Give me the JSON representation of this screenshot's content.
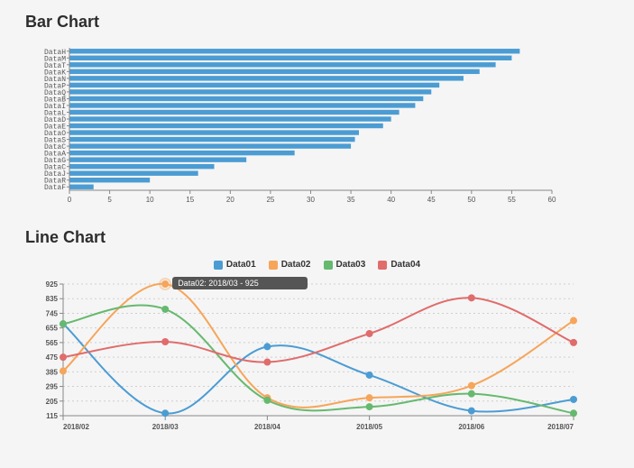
{
  "bar_chart": {
    "title": "Bar Chart",
    "type": "bar-horizontal",
    "bar_color": "#4b9cd3",
    "axis_color": "#888888",
    "tick_color": "#888888",
    "text_color": "#555555",
    "label_font": "monospace",
    "label_fontsize": 8,
    "x_min": 0,
    "x_max": 60,
    "x_tick_step": 5,
    "bars": [
      {
        "label": "DataH",
        "value": 56
      },
      {
        "label": "DataM",
        "value": 55
      },
      {
        "label": "DataT",
        "value": 53
      },
      {
        "label": "DataK",
        "value": 51
      },
      {
        "label": "DataN",
        "value": 49
      },
      {
        "label": "DataP",
        "value": 46
      },
      {
        "label": "DataQ",
        "value": 45
      },
      {
        "label": "DataB",
        "value": 44
      },
      {
        "label": "DataI",
        "value": 43
      },
      {
        "label": "DataL",
        "value": 41
      },
      {
        "label": "DataD",
        "value": 40
      },
      {
        "label": "DataE",
        "value": 39
      },
      {
        "label": "DataO",
        "value": 36
      },
      {
        "label": "DataS",
        "value": 35.5
      },
      {
        "label": "DataC",
        "value": 35
      },
      {
        "label": "DataA",
        "value": 28
      },
      {
        "label": "DataG",
        "value": 22
      },
      {
        "label": "DataC",
        "value": 18
      },
      {
        "label": "DataJ",
        "value": 16
      },
      {
        "label": "DataR",
        "value": 10
      },
      {
        "label": "DataF",
        "value": 3
      }
    ]
  },
  "line_chart": {
    "title": "Line Chart",
    "type": "line-spline",
    "axis_color": "#888888",
    "grid_color": "#aaaaaa",
    "text_color": "#555555",
    "label_fontsize": 9,
    "x_labels": [
      "2018/02",
      "2018/03",
      "2018/04",
      "2018/05",
      "2018/06",
      "2018/07"
    ],
    "y_min": 115,
    "y_max": 925,
    "y_tick_step": 90,
    "marker_radius": 4,
    "line_width": 2,
    "tooltip": {
      "x_index": 1,
      "series_index": 1,
      "text": "Data02: 2018/03 - 925"
    },
    "series": [
      {
        "name": "Data01",
        "color": "#4b9cd3",
        "values": [
          680,
          130,
          540,
          365,
          145,
          215
        ]
      },
      {
        "name": "Data02",
        "color": "#f6a55a",
        "values": [
          390,
          925,
          225,
          225,
          300,
          700
        ]
      },
      {
        "name": "Data03",
        "color": "#66b96f",
        "values": [
          680,
          770,
          210,
          170,
          250,
          130
        ]
      },
      {
        "name": "Data04",
        "color": "#e06c6c",
        "values": [
          475,
          570,
          445,
          620,
          840,
          565
        ]
      }
    ]
  }
}
